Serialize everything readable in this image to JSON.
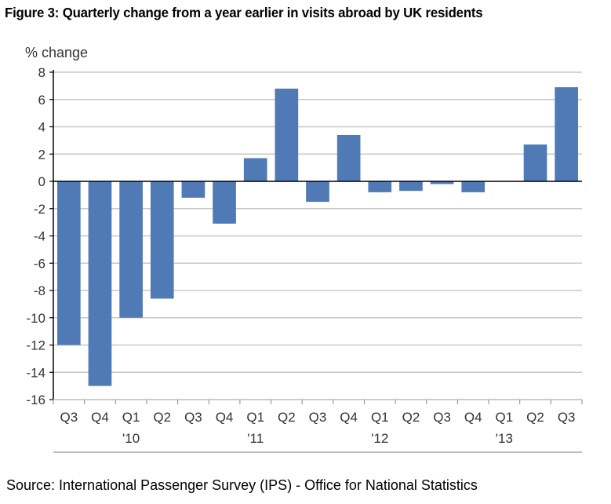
{
  "chart_data": {
    "type": "bar",
    "title": "Figure 3: Quarterly change from a year earlier in visits abroad by UK residents",
    "ylabel": "% change",
    "xlabel": "",
    "ylim": [
      -16,
      8
    ],
    "yticks": [
      "8",
      "6",
      "4",
      "2",
      "0",
      "-2",
      "-4",
      "-6",
      "-8",
      "-10",
      "-12",
      "-14",
      "-16"
    ],
    "ytick_values": [
      8,
      6,
      4,
      2,
      0,
      -2,
      -4,
      -6,
      -8,
      -10,
      -12,
      -14,
      -16
    ],
    "grid": true,
    "categories": [
      "Q3",
      "Q4",
      "Q1",
      "Q2",
      "Q3",
      "Q4",
      "Q1",
      "Q2",
      "Q3",
      "Q4",
      "Q1",
      "Q2",
      "Q3",
      "Q4",
      "Q1",
      "Q2",
      "Q3"
    ],
    "year_labels": [
      "",
      "",
      "'10",
      "",
      "",
      "",
      "'11",
      "",
      "",
      "",
      "'12",
      "",
      "",
      "",
      "'13",
      "",
      ""
    ],
    "values": [
      -12.0,
      -15.0,
      -10.0,
      -8.6,
      -1.2,
      -3.1,
      1.7,
      6.8,
      -1.5,
      3.4,
      -0.8,
      -0.7,
      -0.2,
      -0.8,
      0.0,
      2.7,
      6.9
    ],
    "bar_color": "#4F7AB5"
  },
  "source": "Source: International Passenger Survey (IPS) - Office for National Statistics"
}
